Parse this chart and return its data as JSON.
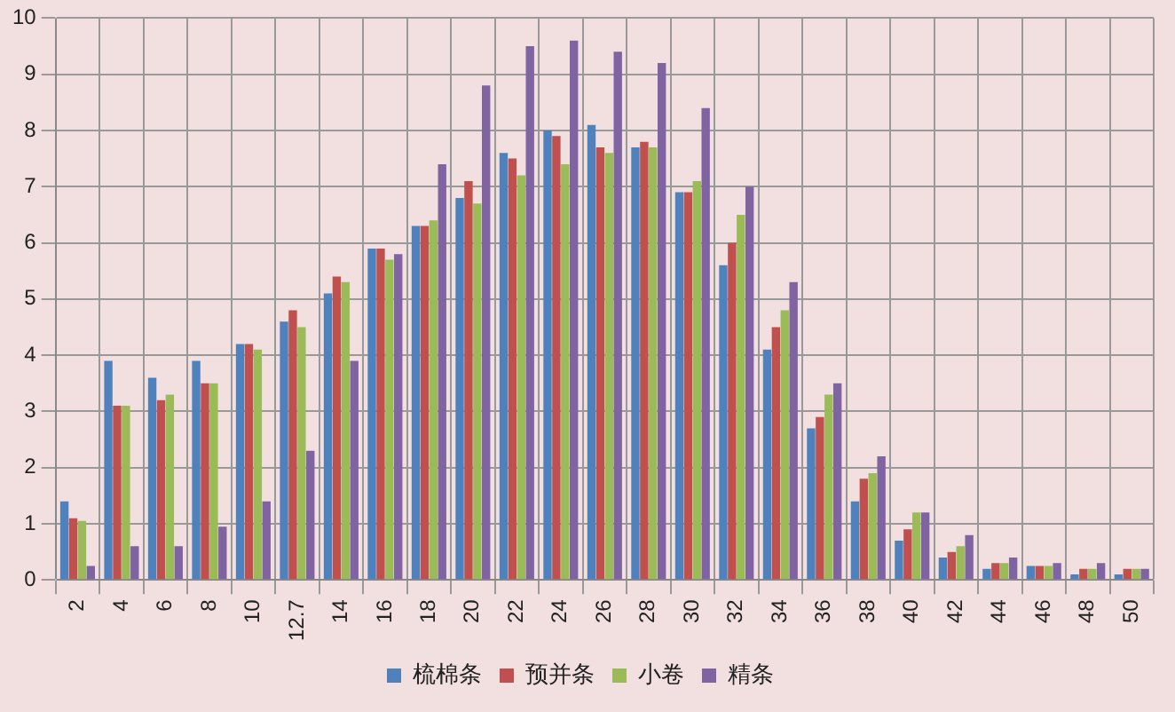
{
  "chart_data": {
    "type": "bar",
    "categories": [
      "2",
      "4",
      "6",
      "8",
      "10",
      "12.7",
      "14",
      "16",
      "18",
      "20",
      "22",
      "24",
      "26",
      "28",
      "30",
      "32",
      "34",
      "36",
      "38",
      "40",
      "42",
      "44",
      "46",
      "48",
      "50"
    ],
    "series": [
      {
        "name": "梳棉条",
        "color": "#4f81bd",
        "values": [
          1.4,
          3.9,
          3.6,
          3.9,
          4.2,
          4.6,
          5.1,
          5.9,
          6.3,
          6.8,
          7.6,
          8.0,
          8.1,
          7.7,
          6.9,
          5.6,
          4.1,
          2.7,
          1.4,
          0.7,
          0.4,
          0.2,
          0.25,
          0.1,
          0.1
        ]
      },
      {
        "name": "预并条",
        "color": "#c0504d",
        "values": [
          1.1,
          3.1,
          3.2,
          3.5,
          4.2,
          4.8,
          5.4,
          5.9,
          6.3,
          7.1,
          7.5,
          7.9,
          7.7,
          7.8,
          6.9,
          6.0,
          4.5,
          2.9,
          1.8,
          0.9,
          0.5,
          0.3,
          0.25,
          0.2,
          0.2
        ]
      },
      {
        "name": "小卷",
        "color": "#9bbb59",
        "values": [
          1.05,
          3.1,
          3.3,
          3.5,
          4.1,
          4.5,
          5.3,
          5.7,
          6.4,
          6.7,
          7.2,
          7.4,
          7.6,
          7.7,
          7.1,
          6.5,
          4.8,
          3.3,
          1.9,
          1.2,
          0.6,
          0.3,
          0.25,
          0.2,
          0.2
        ]
      },
      {
        "name": "精条",
        "color": "#8064a2",
        "values": [
          0.25,
          0.6,
          0.6,
          0.95,
          1.4,
          2.3,
          3.9,
          5.8,
          7.4,
          8.8,
          9.5,
          9.6,
          9.4,
          9.2,
          8.4,
          7.0,
          5.3,
          3.5,
          2.2,
          1.2,
          0.8,
          0.4,
          0.3,
          0.3,
          0.2
        ]
      }
    ],
    "ylim": [
      0,
      10
    ],
    "yticks": [
      0,
      1,
      2,
      3,
      4,
      5,
      6,
      7,
      8,
      9,
      10
    ],
    "grid": true,
    "legend": "bottom"
  }
}
